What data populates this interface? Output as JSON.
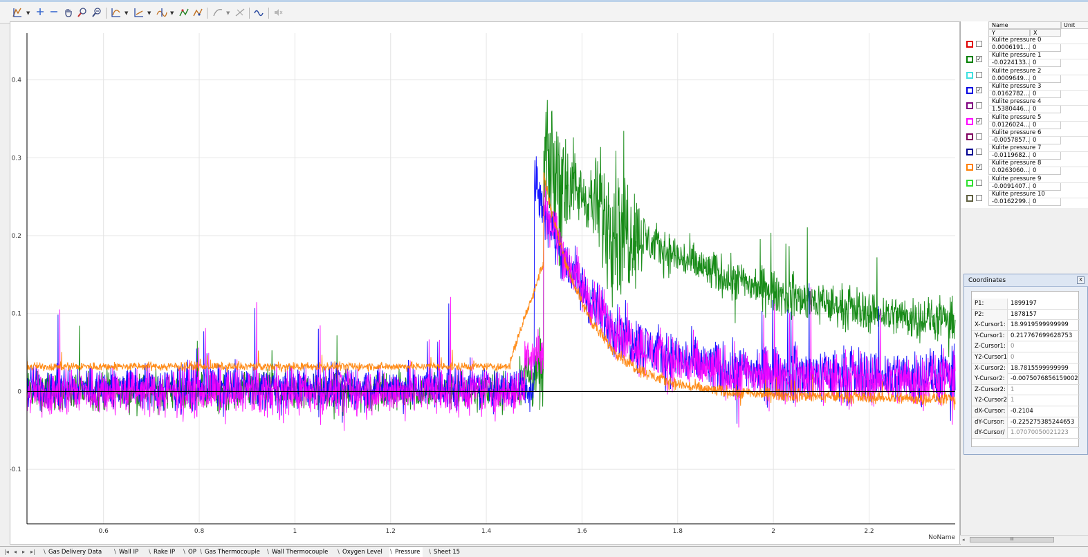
{
  "toolbar": {
    "icons": [
      "cursor-icon",
      "crosshair-plus-icon",
      "minus-icon",
      "pan-hand-icon",
      "zoom-icon",
      "zoom-out-icon",
      "curve-fit-icon",
      "axis-icon",
      "marker-icon",
      "peak-icon",
      "peak-alt-icon",
      "trend-icon",
      "trend-disabled-icon",
      "waveform-icon",
      "sound-disabled-icon"
    ]
  },
  "chart_data": {
    "type": "line",
    "x_ticks": [
      "0.6",
      "0.8",
      "1",
      "1.2",
      "1.4",
      "1.6",
      "1.8",
      "2",
      "2.2"
    ],
    "y_ticks": [
      "0.4",
      "0.3",
      "0.2",
      "0.1",
      "0",
      "-0.1"
    ],
    "xlim": [
      0.44,
      2.38
    ],
    "ylim": [
      -0.17,
      0.46
    ],
    "grid": true,
    "corner_label": "NoName",
    "series": [
      {
        "name": "Kulite pressure 1",
        "color": "#008000"
      },
      {
        "name": "Kulite pressure 3",
        "color": "#0000ff"
      },
      {
        "name": "Kulite pressure 5",
        "color": "#ff00ff"
      },
      {
        "name": "Kulite pressure 8",
        "color": "#ff7f00"
      }
    ]
  },
  "legend": {
    "header": {
      "name": "Name",
      "unit": "Unit",
      "y": "Y",
      "x": "X"
    },
    "channels": [
      {
        "name": "Kulite pressure 0",
        "y": "0.0006191...",
        "x": "0",
        "color": "#e00000",
        "checked": false
      },
      {
        "name": "Kulite pressure 1",
        "y": "-0.0224133...",
        "x": "0",
        "color": "#008000",
        "checked": true
      },
      {
        "name": "Kulite pressure 2",
        "y": "0.0009649...",
        "x": "0",
        "color": "#40e0e0",
        "checked": false
      },
      {
        "name": "Kulite pressure 3",
        "y": "0.0162782...",
        "x": "0",
        "color": "#0000e0",
        "checked": true
      },
      {
        "name": "Kulite pressure 4",
        "y": "1.5380446...",
        "x": "0",
        "color": "#800080",
        "checked": false
      },
      {
        "name": "Kulite pressure 5",
        "y": "0.0126024...",
        "x": "0",
        "color": "#ff00ff",
        "checked": true
      },
      {
        "name": "Kulite pressure 6",
        "y": "-0.0057857...",
        "x": "0",
        "color": "#800060",
        "checked": false
      },
      {
        "name": "Kulite pressure 7",
        "y": "-0.0119682...",
        "x": "0",
        "color": "#000090",
        "checked": false
      },
      {
        "name": "Kulite pressure 8",
        "y": "0.0263060...",
        "x": "0",
        "color": "#ff7f00",
        "checked": true
      },
      {
        "name": "Kulite pressure 9",
        "y": "-0.0091407...",
        "x": "0",
        "color": "#30e030",
        "checked": false
      },
      {
        "name": "Kulite pressure 10",
        "y": "-0.0162299...",
        "x": "0",
        "color": "#606040",
        "checked": false
      }
    ]
  },
  "coordinates": {
    "title": "Coordinates",
    "close_label": "X",
    "rows": [
      {
        "label": "P1:",
        "value": "1899197",
        "dim": false
      },
      {
        "label": "P2:",
        "value": "1878157",
        "dim": false
      },
      {
        "label": "X-Cursor1:",
        "value": "18.9919599999999",
        "dim": false
      },
      {
        "label": "Y-Cursor1:",
        "value": "0.217767699628753",
        "dim": false
      },
      {
        "label": "Z-Cursor1:",
        "value": "0",
        "dim": true
      },
      {
        "label": "Y2-Cursor1",
        "value": "0",
        "dim": true
      },
      {
        "label": "X-Cursor2:",
        "value": "18.7815599999999",
        "dim": false
      },
      {
        "label": "Y-Cursor2:",
        "value": "-0.0075076856159002",
        "dim": false
      },
      {
        "label": "Z-Cursor2:",
        "value": "1",
        "dim": true
      },
      {
        "label": "Y2-Cursor2",
        "value": "1",
        "dim": true
      },
      {
        "label": "dX-Cursor:",
        "value": "-0.2104",
        "dim": false
      },
      {
        "label": "dY-Cursor:",
        "value": "-0.225275385244653",
        "dim": false
      },
      {
        "label": "dY-Cursor/",
        "value": "1.07070050021223",
        "dim": true
      }
    ]
  },
  "scrollbar": {
    "thumb_label": "III"
  },
  "sheets": {
    "tabs": [
      "Gas Delivery Data",
      "Wall IP",
      "Rake IP",
      "OP",
      "Gas Thermocouple",
      "Wall Thermocouple",
      "Oxygen Level",
      "Pressure",
      "Sheet 15"
    ],
    "active": "Pressure"
  }
}
